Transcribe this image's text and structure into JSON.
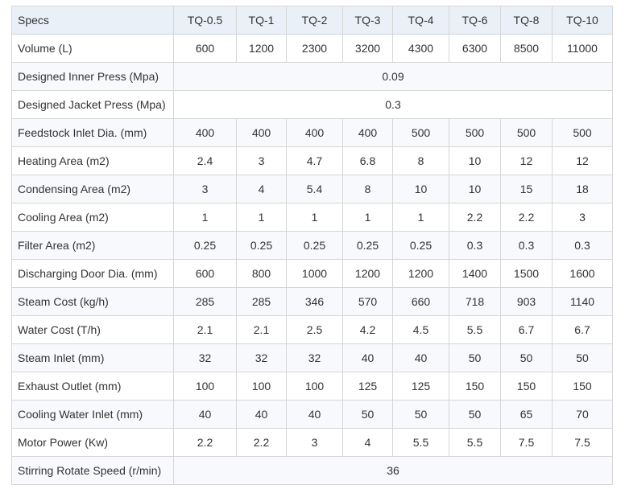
{
  "table": {
    "header": [
      "Specs",
      "TQ-0.5",
      "TQ-1",
      "TQ-2",
      "TQ-3",
      "TQ-4",
      "TQ-6",
      "TQ-8",
      "TQ-10"
    ],
    "rows": [
      {
        "label": "Volume (L)",
        "values": [
          "600",
          "1200",
          "2300",
          "3200",
          "4300",
          "6300",
          "8500",
          "11000"
        ]
      },
      {
        "label": "Designed Inner Press (Mpa)",
        "merged": "0.09"
      },
      {
        "label": "Designed Jacket Press (Mpa)",
        "merged": "0.3"
      },
      {
        "label": "Feedstock Inlet Dia. (mm)",
        "values": [
          "400",
          "400",
          "400",
          "400",
          "500",
          "500",
          "500",
          "500"
        ]
      },
      {
        "label": "Heating Area (m2)",
        "values": [
          "2.4",
          "3",
          "4.7",
          "6.8",
          "8",
          "10",
          "12",
          "12"
        ]
      },
      {
        "label": "Condensing Area (m2)",
        "values": [
          "3",
          "4",
          "5.4",
          "8",
          "10",
          "10",
          "15",
          "18"
        ]
      },
      {
        "label": "Cooling Area (m2)",
        "values": [
          "1",
          "1",
          "1",
          "1",
          "1",
          "2.2",
          "2.2",
          "3"
        ]
      },
      {
        "label": "Filter Area (m2)",
        "values": [
          "0.25",
          "0.25",
          "0.25",
          "0.25",
          "0.25",
          "0.3",
          "0.3",
          "0.3"
        ]
      },
      {
        "label": "Discharging Door Dia. (mm)",
        "values": [
          "600",
          "800",
          "1000",
          "1200",
          "1200",
          "1400",
          "1500",
          "1600"
        ]
      },
      {
        "label": "Steam Cost (kg/h)",
        "values": [
          "285",
          "285",
          "346",
          "570",
          "660",
          "718",
          "903",
          "1140"
        ]
      },
      {
        "label": "Water Cost (T/h)",
        "values": [
          "2.1",
          "2.1",
          "2.5",
          "4.2",
          "4.5",
          "5.5",
          "6.7",
          "6.7"
        ]
      },
      {
        "label": "Steam Inlet (mm)",
        "values": [
          "32",
          "32",
          "32",
          "40",
          "40",
          "50",
          "50",
          "50"
        ]
      },
      {
        "label": "Exhaust Outlet (mm)",
        "values": [
          "100",
          "100",
          "100",
          "125",
          "125",
          "150",
          "150",
          "150"
        ]
      },
      {
        "label": "Cooling Water Inlet (mm)",
        "values": [
          "40",
          "40",
          "40",
          "50",
          "50",
          "50",
          "65",
          "70"
        ]
      },
      {
        "label": "Motor Power (Kw)",
        "values": [
          "2.2",
          "2.2",
          "3",
          "4",
          "5.5",
          "5.5",
          "7.5",
          "7.5"
        ]
      },
      {
        "label": "Stirring Rotate Speed (r/min)",
        "merged": "36"
      }
    ]
  }
}
